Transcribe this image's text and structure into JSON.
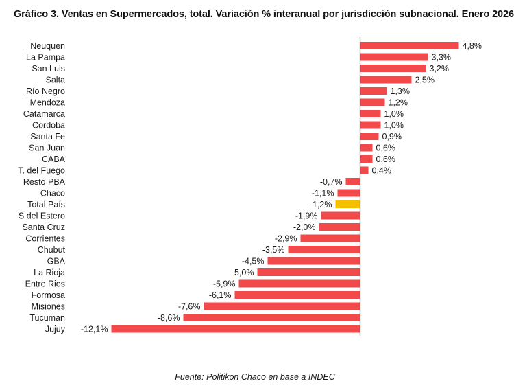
{
  "title": "Gráfico 3. Ventas en Supermercados, total. Variación % interanual por jurisdicción subnacional. Enero 2026",
  "source": "Fuente: Politikon Chaco en base a INDEC",
  "colors": {
    "bar": "#f24a4a",
    "highlight": "#f5c000",
    "axis": "#444444"
  },
  "chart_data": {
    "type": "bar",
    "orientation": "horizontal",
    "categories": [
      "Neuquen",
      "La Pampa",
      "San Luis",
      "Salta",
      "Río Negro",
      "Mendoza",
      "Catamarca",
      "Cordoba",
      "Santa Fe",
      "San Juan",
      "CABA",
      "T. del Fuego",
      "Resto PBA",
      "Chaco",
      "Total País",
      "S del Estero",
      "Santa Cruz",
      "Corrientes",
      "Chubut",
      "GBA",
      "La Rioja",
      "Entre Rios",
      "Formosa",
      "Misiones",
      "Tucuman",
      "Jujuy"
    ],
    "values": [
      4.8,
      3.3,
      3.2,
      2.5,
      1.3,
      1.2,
      1.0,
      1.0,
      0.9,
      0.6,
      0.6,
      0.4,
      -0.7,
      -1.1,
      -1.2,
      -1.9,
      -2.0,
      -2.9,
      -3.5,
      -4.5,
      -5.0,
      -5.9,
      -6.1,
      -7.6,
      -8.6,
      -12.1
    ],
    "value_labels": [
      "4,8%",
      "3,3%",
      "3,2%",
      "2,5%",
      "1,3%",
      "1,2%",
      "1,0%",
      "1,0%",
      "0,9%",
      "0,6%",
      "0,6%",
      "0,4%",
      "-0,7%",
      "-1,1%",
      "-1,2%",
      "-1,9%",
      "-2,0%",
      "-2,9%",
      "-3,5%",
      "-4,5%",
      "-5,0%",
      "-5,9%",
      "-6,1%",
      "-7,6%",
      "-8,6%",
      "-12,1%"
    ],
    "highlight_category": "Total País",
    "xlim": [
      -12.1,
      4.8
    ],
    "grid": false,
    "legend": "none"
  }
}
